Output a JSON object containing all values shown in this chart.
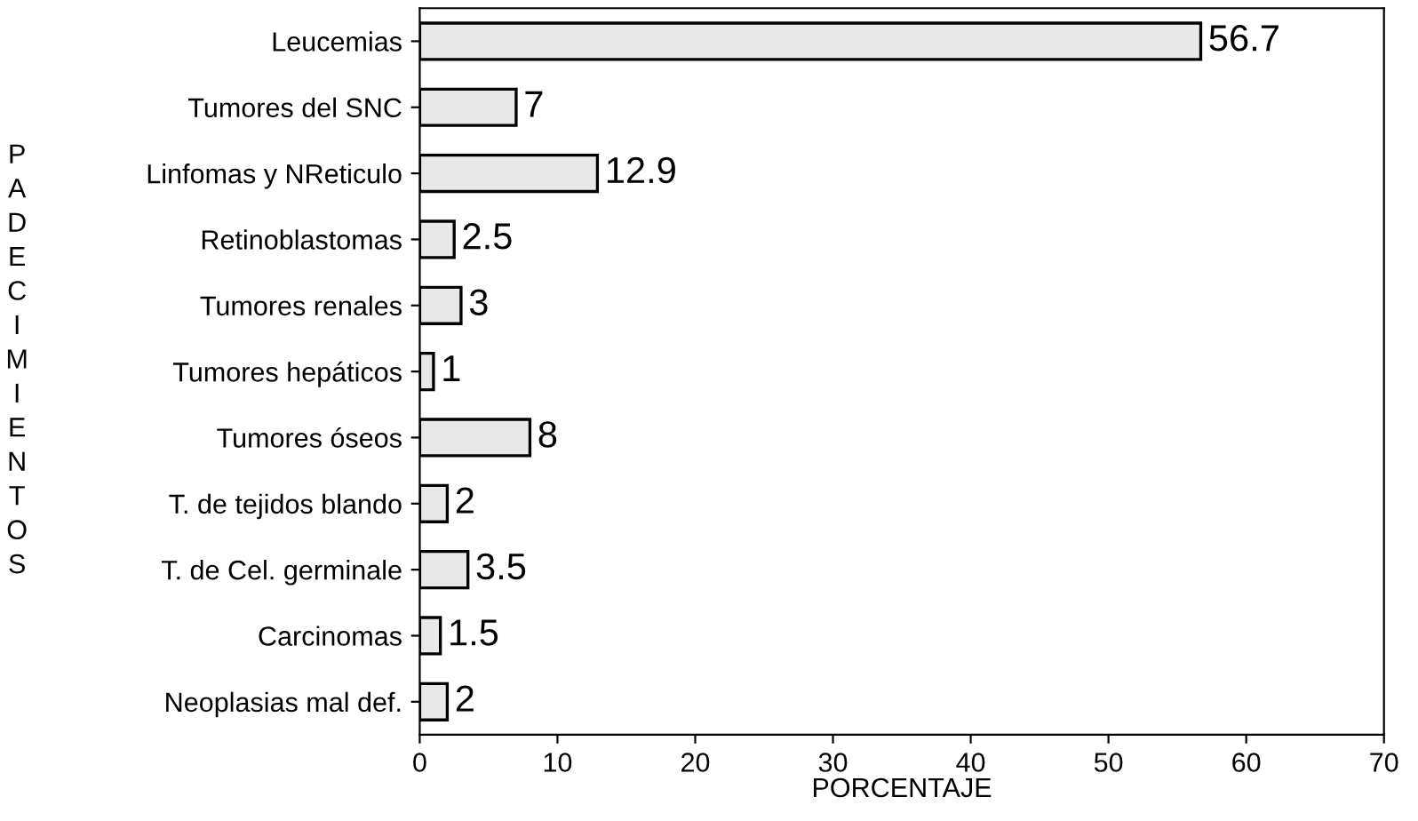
{
  "chart_data": {
    "type": "bar",
    "orientation": "horizontal",
    "categories": [
      "Leucemias",
      "Tumores del SNC",
      "Linfomas y NReticulo",
      "Retinoblastomas",
      "Tumores renales",
      "Tumores hepáticos",
      "Tumores óseos",
      "T. de tejidos blando",
      "T. de Cel. germinale",
      "Carcinomas",
      "Neoplasias mal def."
    ],
    "values": [
      56.7,
      7,
      12.9,
      2.5,
      3,
      1,
      8,
      2,
      3.5,
      1.5,
      2
    ],
    "color": "#e8e8e8",
    "xlabel": "PORCENTAJE",
    "ylabel": "PADECIMIENTOS",
    "xlim": [
      0,
      70
    ],
    "xticks": [
      0,
      10,
      20,
      30,
      40,
      50,
      60,
      70
    ],
    "data_labels": true,
    "grid": false,
    "legend": false
  }
}
